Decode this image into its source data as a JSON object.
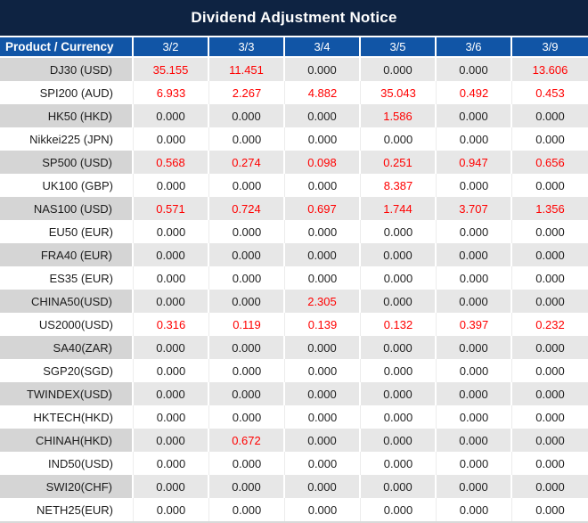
{
  "title": "Dividend Adjustment Notice",
  "colors": {
    "title_bg": "#0E2342",
    "header_bg": "#1155A6",
    "header_text": "#FFFFFF",
    "alt_row_product_bg": "#D5D5D5",
    "alt_row_value_bg": "#E7E7E7",
    "zero_value_text": "#1F1F1F",
    "nonzero_value_text": "#FF0000",
    "frame_bg": "#D9D9D9"
  },
  "chart_data": {
    "type": "table",
    "title": "Dividend Adjustment Notice",
    "columns": [
      "Product / Currency",
      "3/2",
      "3/3",
      "3/4",
      "3/5",
      "3/6",
      "3/9"
    ],
    "rows": [
      {
        "product": "DJ30 (USD)",
        "values": [
          "35.155",
          "11.451",
          "0.000",
          "0.000",
          "0.000",
          "13.606"
        ]
      },
      {
        "product": "SPI200 (AUD)",
        "values": [
          "6.933",
          "2.267",
          "4.882",
          "35.043",
          "0.492",
          "0.453"
        ]
      },
      {
        "product": "HK50 (HKD)",
        "values": [
          "0.000",
          "0.000",
          "0.000",
          "1.586",
          "0.000",
          "0.000"
        ]
      },
      {
        "product": "Nikkei225 (JPN)",
        "values": [
          "0.000",
          "0.000",
          "0.000",
          "0.000",
          "0.000",
          "0.000"
        ]
      },
      {
        "product": "SP500 (USD)",
        "values": [
          "0.568",
          "0.274",
          "0.098",
          "0.251",
          "0.947",
          "0.656"
        ]
      },
      {
        "product": "UK100 (GBP)",
        "values": [
          "0.000",
          "0.000",
          "0.000",
          "8.387",
          "0.000",
          "0.000"
        ]
      },
      {
        "product": "NAS100 (USD)",
        "values": [
          "0.571",
          "0.724",
          "0.697",
          "1.744",
          "3.707",
          "1.356"
        ]
      },
      {
        "product": "EU50 (EUR)",
        "values": [
          "0.000",
          "0.000",
          "0.000",
          "0.000",
          "0.000",
          "0.000"
        ]
      },
      {
        "product": "FRA40 (EUR)",
        "values": [
          "0.000",
          "0.000",
          "0.000",
          "0.000",
          "0.000",
          "0.000"
        ]
      },
      {
        "product": "ES35 (EUR)",
        "values": [
          "0.000",
          "0.000",
          "0.000",
          "0.000",
          "0.000",
          "0.000"
        ]
      },
      {
        "product": "CHINA50(USD)",
        "values": [
          "0.000",
          "0.000",
          "2.305",
          "0.000",
          "0.000",
          "0.000"
        ]
      },
      {
        "product": "US2000(USD)",
        "values": [
          "0.316",
          "0.119",
          "0.139",
          "0.132",
          "0.397",
          "0.232"
        ]
      },
      {
        "product": "SA40(ZAR)",
        "values": [
          "0.000",
          "0.000",
          "0.000",
          "0.000",
          "0.000",
          "0.000"
        ]
      },
      {
        "product": "SGP20(SGD)",
        "values": [
          "0.000",
          "0.000",
          "0.000",
          "0.000",
          "0.000",
          "0.000"
        ]
      },
      {
        "product": "TWINDEX(USD)",
        "values": [
          "0.000",
          "0.000",
          "0.000",
          "0.000",
          "0.000",
          "0.000"
        ]
      },
      {
        "product": "HKTECH(HKD)",
        "values": [
          "0.000",
          "0.000",
          "0.000",
          "0.000",
          "0.000",
          "0.000"
        ]
      },
      {
        "product": "CHINAH(HKD)",
        "values": [
          "0.000",
          "0.672",
          "0.000",
          "0.000",
          "0.000",
          "0.000"
        ]
      },
      {
        "product": "IND50(USD)",
        "values": [
          "0.000",
          "0.000",
          "0.000",
          "0.000",
          "0.000",
          "0.000"
        ]
      },
      {
        "product": "SWI20(CHF)",
        "values": [
          "0.000",
          "0.000",
          "0.000",
          "0.000",
          "0.000",
          "0.000"
        ]
      },
      {
        "product": "NETH25(EUR)",
        "values": [
          "0.000",
          "0.000",
          "0.000",
          "0.000",
          "0.000",
          "0.000"
        ]
      }
    ],
    "layout_hints": {
      "grid": "alternating gray/white rows, white column separators on gray rows",
      "value_style_rule": "non-zero values rendered red, zero values black",
      "product_column_align": "right",
      "value_columns_align": "center"
    }
  }
}
